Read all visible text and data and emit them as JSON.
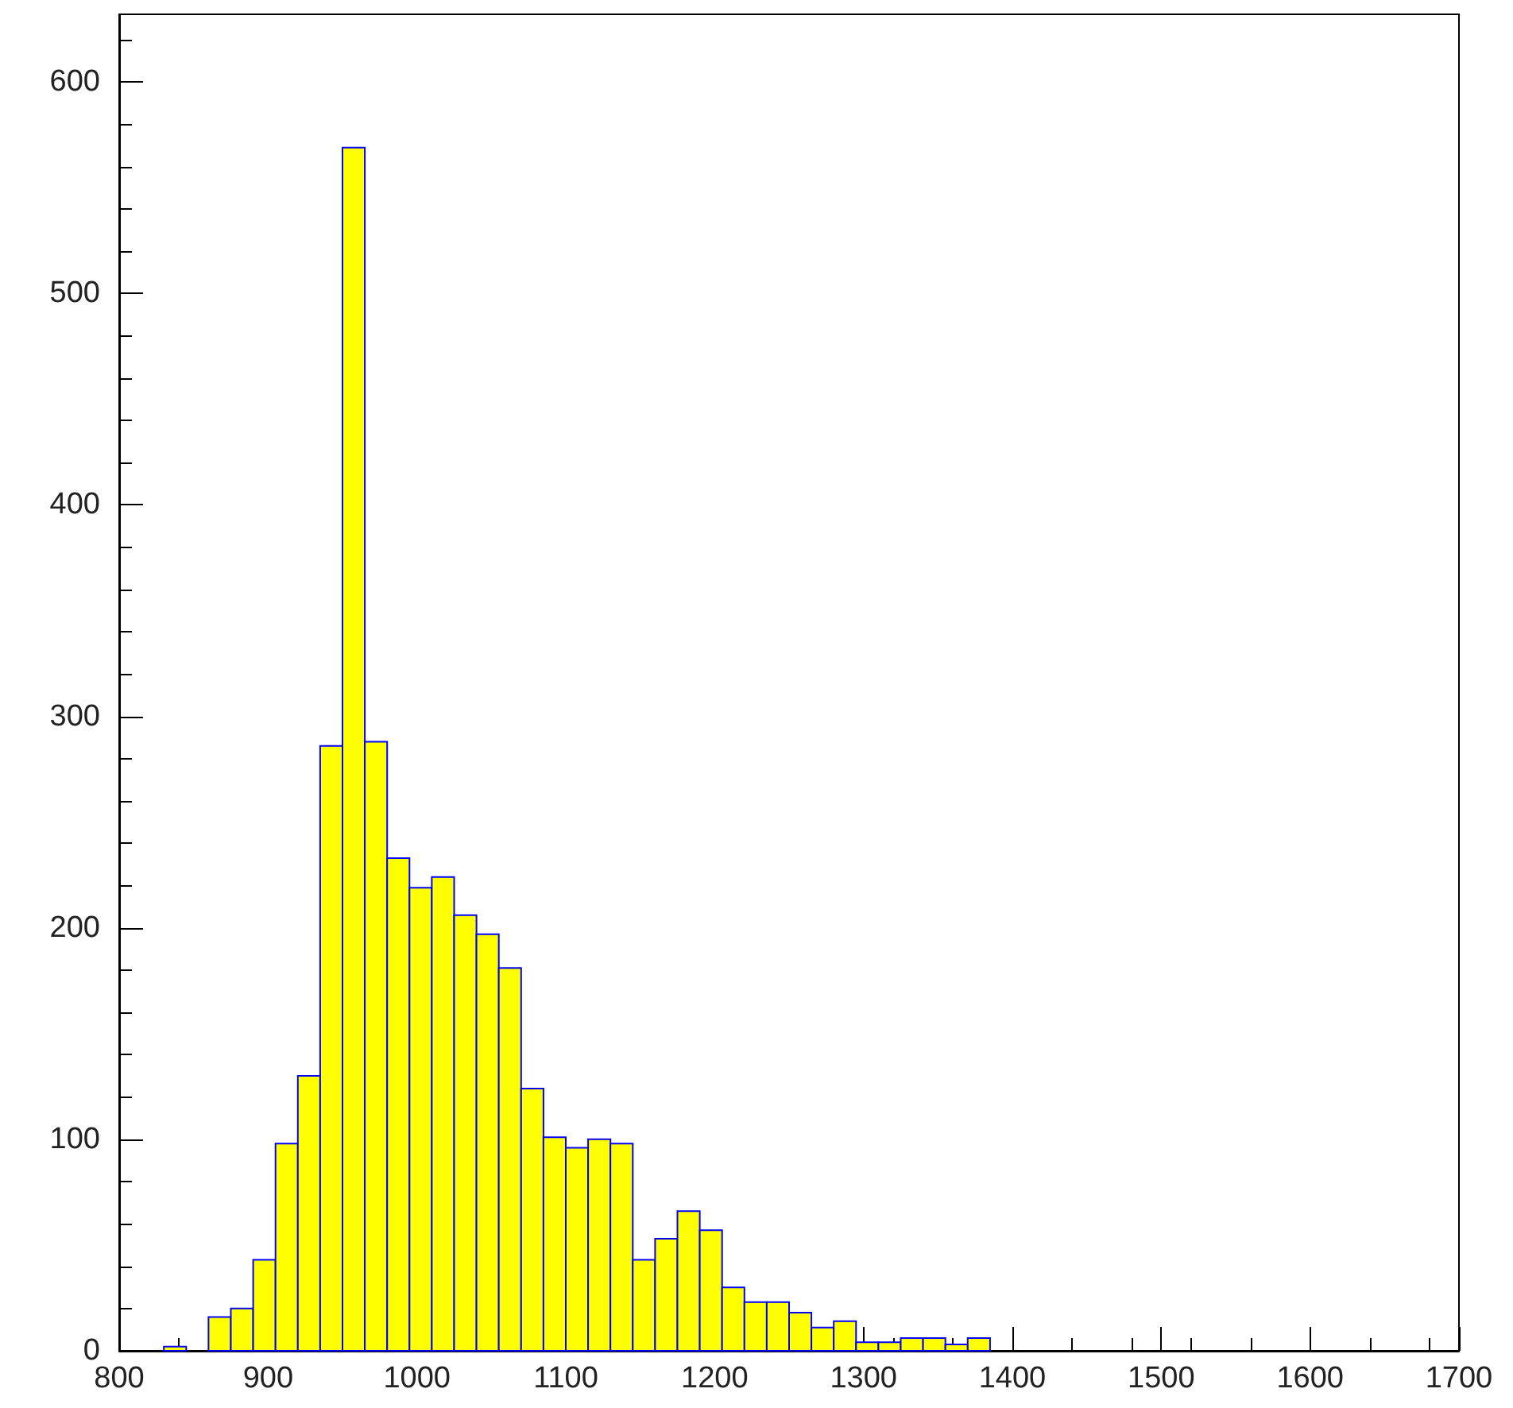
{
  "chart_data": {
    "type": "histogram",
    "bins": [
      830,
      845,
      860,
      875,
      890,
      905,
      920,
      935,
      950,
      965,
      980,
      995,
      1010,
      1025,
      1040,
      1055,
      1070,
      1085,
      1100,
      1115,
      1130,
      1145,
      1160,
      1175,
      1190,
      1205,
      1220,
      1235,
      1250,
      1265,
      1280,
      1295,
      1310,
      1325,
      1340,
      1355,
      1370,
      1385
    ],
    "values": [
      2,
      0,
      16,
      20,
      43,
      98,
      130,
      286,
      569,
      288,
      233,
      219,
      224,
      206,
      197,
      181,
      124,
      101,
      96,
      100,
      98,
      43,
      53,
      66,
      57,
      30,
      23,
      23,
      18,
      11,
      14,
      4,
      4,
      6,
      6,
      3,
      6
    ],
    "color": "#ffff00",
    "xlim": [
      800,
      1700
    ],
    "xticks": [
      800,
      900,
      1000,
      1100,
      1200,
      1300,
      1400,
      1500,
      1600,
      1700
    ],
    "ylim": [
      0,
      632
    ],
    "yticks": [
      0,
      100,
      200,
      300,
      400,
      500,
      600
    ],
    "grid": false
  }
}
